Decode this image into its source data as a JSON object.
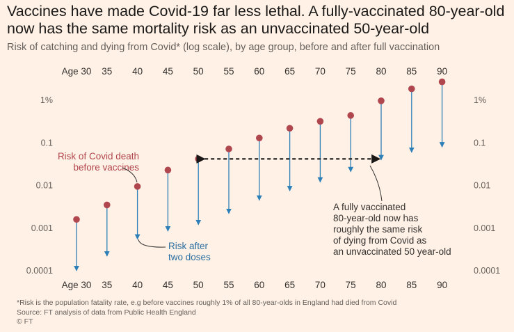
{
  "title": "Vaccines have made Covid-19 far less lethal. A fully-vaccinated 80-year-old now has the same mortality risk as an unvaccinated 50-year-old",
  "subtitle": "Risk of catching and dying from Covid* (log scale), by age group, before and after full vaccination",
  "footnote": "*Risk is the population fatality rate, e.g before vaccines roughly 1% of all 80-year-olds in England had died from Covid",
  "source": "Source: FT analysis of data from Public Health England",
  "copyright": "© FT",
  "chart_data": {
    "type": "scatter",
    "x_scale": "category",
    "y_scale": "log",
    "categories": [
      "Age 30",
      "35",
      "40",
      "45",
      "50",
      "55",
      "60",
      "65",
      "70",
      "75",
      "80",
      "85",
      "90"
    ],
    "y_ticks": [
      {
        "value": 0.0001,
        "label": "0.0001"
      },
      {
        "value": 0.001,
        "label": "0.001"
      },
      {
        "value": 0.01,
        "label": "0.01"
      },
      {
        "value": 0.1,
        "label": "0.1"
      },
      {
        "value": 1,
        "label": "1%"
      }
    ],
    "ylim": [
      0.0001,
      3.2
    ],
    "grid": false,
    "series": [
      {
        "values": [
          0.0016,
          0.0035,
          0.0095,
          0.023,
          0.042,
          0.072,
          0.13,
          0.22,
          0.32,
          0.44,
          0.97,
          1.85,
          2.7
        ]
      },
      {
        "values": [
          0.0001,
          0.00022,
          0.00055,
          0.00085,
          0.0012,
          0.0022,
          0.0045,
          0.0075,
          0.012,
          0.021,
          0.04,
          0.06,
          0.08
        ]
      }
    ],
    "annotations": [
      {
        "text": [
          "Risk of Covid death",
          "before vaccines"
        ]
      },
      {
        "text": [
          "Risk after",
          "two doses"
        ]
      },
      {
        "text": [
          "A fully vaccinated",
          "80-year-old now has",
          "roughly the same risk",
          "of dying from Covid as",
          "an unvaccinated 50 year-old"
        ]
      }
    ],
    "colors": {
      "before": "#b0464e",
      "after": "#2d7fb8",
      "annotation": "#b0464e",
      "annotation_after": "#2a6ea1",
      "text": "#33302e",
      "background": "#fff1e5"
    }
  }
}
